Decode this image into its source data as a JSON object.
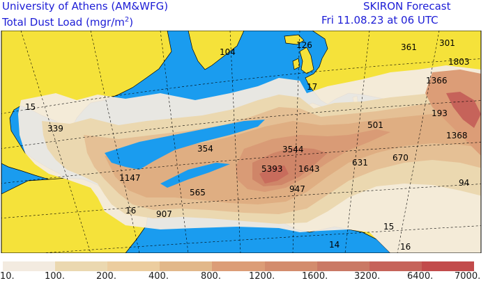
{
  "header": {
    "institution": "University of Athens (AM&WFG)",
    "product_prefix": "Total Dust Load (mgr/m",
    "product_exp": "2",
    "product_suffix": ")",
    "model": "SKIRON Forecast",
    "valid_time": "Fri 11.08.23 at 06 UTC"
  },
  "map": {
    "colors": {
      "ocean": "#1a9cef",
      "land": "#f5e23a",
      "border": "#000000",
      "grid": "#000000"
    },
    "values": [
      {
        "text": "15"
      },
      {
        "text": "339"
      },
      {
        "text": "104"
      },
      {
        "text": "126"
      },
      {
        "text": "361"
      },
      {
        "text": "301"
      },
      {
        "text": "1803"
      },
      {
        "text": "17"
      },
      {
        "text": "1366"
      },
      {
        "text": "193"
      },
      {
        "text": "501"
      },
      {
        "text": "1368"
      },
      {
        "text": "354"
      },
      {
        "text": "3544"
      },
      {
        "text": "5393"
      },
      {
        "text": "1643"
      },
      {
        "text": "631"
      },
      {
        "text": "670"
      },
      {
        "text": "1147"
      },
      {
        "text": "565"
      },
      {
        "text": "947"
      },
      {
        "text": "94"
      },
      {
        "text": "16"
      },
      {
        "text": "907"
      },
      {
        "text": "15"
      },
      {
        "text": "14"
      },
      {
        "text": "16"
      }
    ]
  },
  "legend": {
    "colors": [
      "#f3ebe0",
      "#ebd8b0",
      "#eccd9f",
      "#e2b88a",
      "#dc9d77",
      "#d38c6d",
      "#ca7965",
      "#c6635a",
      "#c24b4b"
    ],
    "labels": [
      "10.",
      "100.",
      "200.",
      "400.",
      "800.",
      "1200.",
      "1600.",
      "3200.",
      "6400.",
      "7000."
    ]
  }
}
